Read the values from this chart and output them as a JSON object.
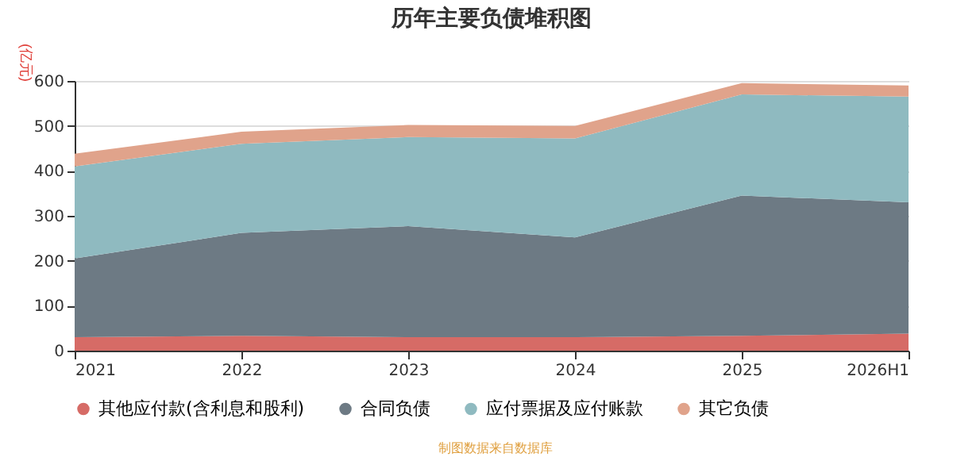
{
  "chart_data": {
    "type": "area",
    "title": "历年主要负债堆积图",
    "ylabel": "(亿元)",
    "categories": [
      "2021",
      "2022",
      "2023",
      "2024",
      "2025",
      "2026H1"
    ],
    "stacked": true,
    "series": [
      {
        "name": "其他应付款(含利息和股利)",
        "color": "#d66b66",
        "values": [
          30,
          33,
          30,
          30,
          33,
          38
        ]
      },
      {
        "name": "合同负债",
        "color": "#6d7a84",
        "values": [
          175,
          229,
          247,
          222,
          312,
          292
        ]
      },
      {
        "name": "应付票据及应付账款",
        "color": "#8fbac0",
        "values": [
          205,
          198,
          198,
          220,
          225,
          235
        ]
      },
      {
        "name": "其它负债",
        "color": "#e0a38b",
        "values": [
          28,
          27,
          27,
          28,
          25,
          25
        ]
      }
    ],
    "ylim": [
      0,
      600
    ],
    "yticks": [
      0,
      100,
      200,
      300,
      400,
      500,
      600
    ],
    "grid": "y",
    "legend": "bottom",
    "annotations": [
      "制图数据来自数据库"
    ]
  }
}
